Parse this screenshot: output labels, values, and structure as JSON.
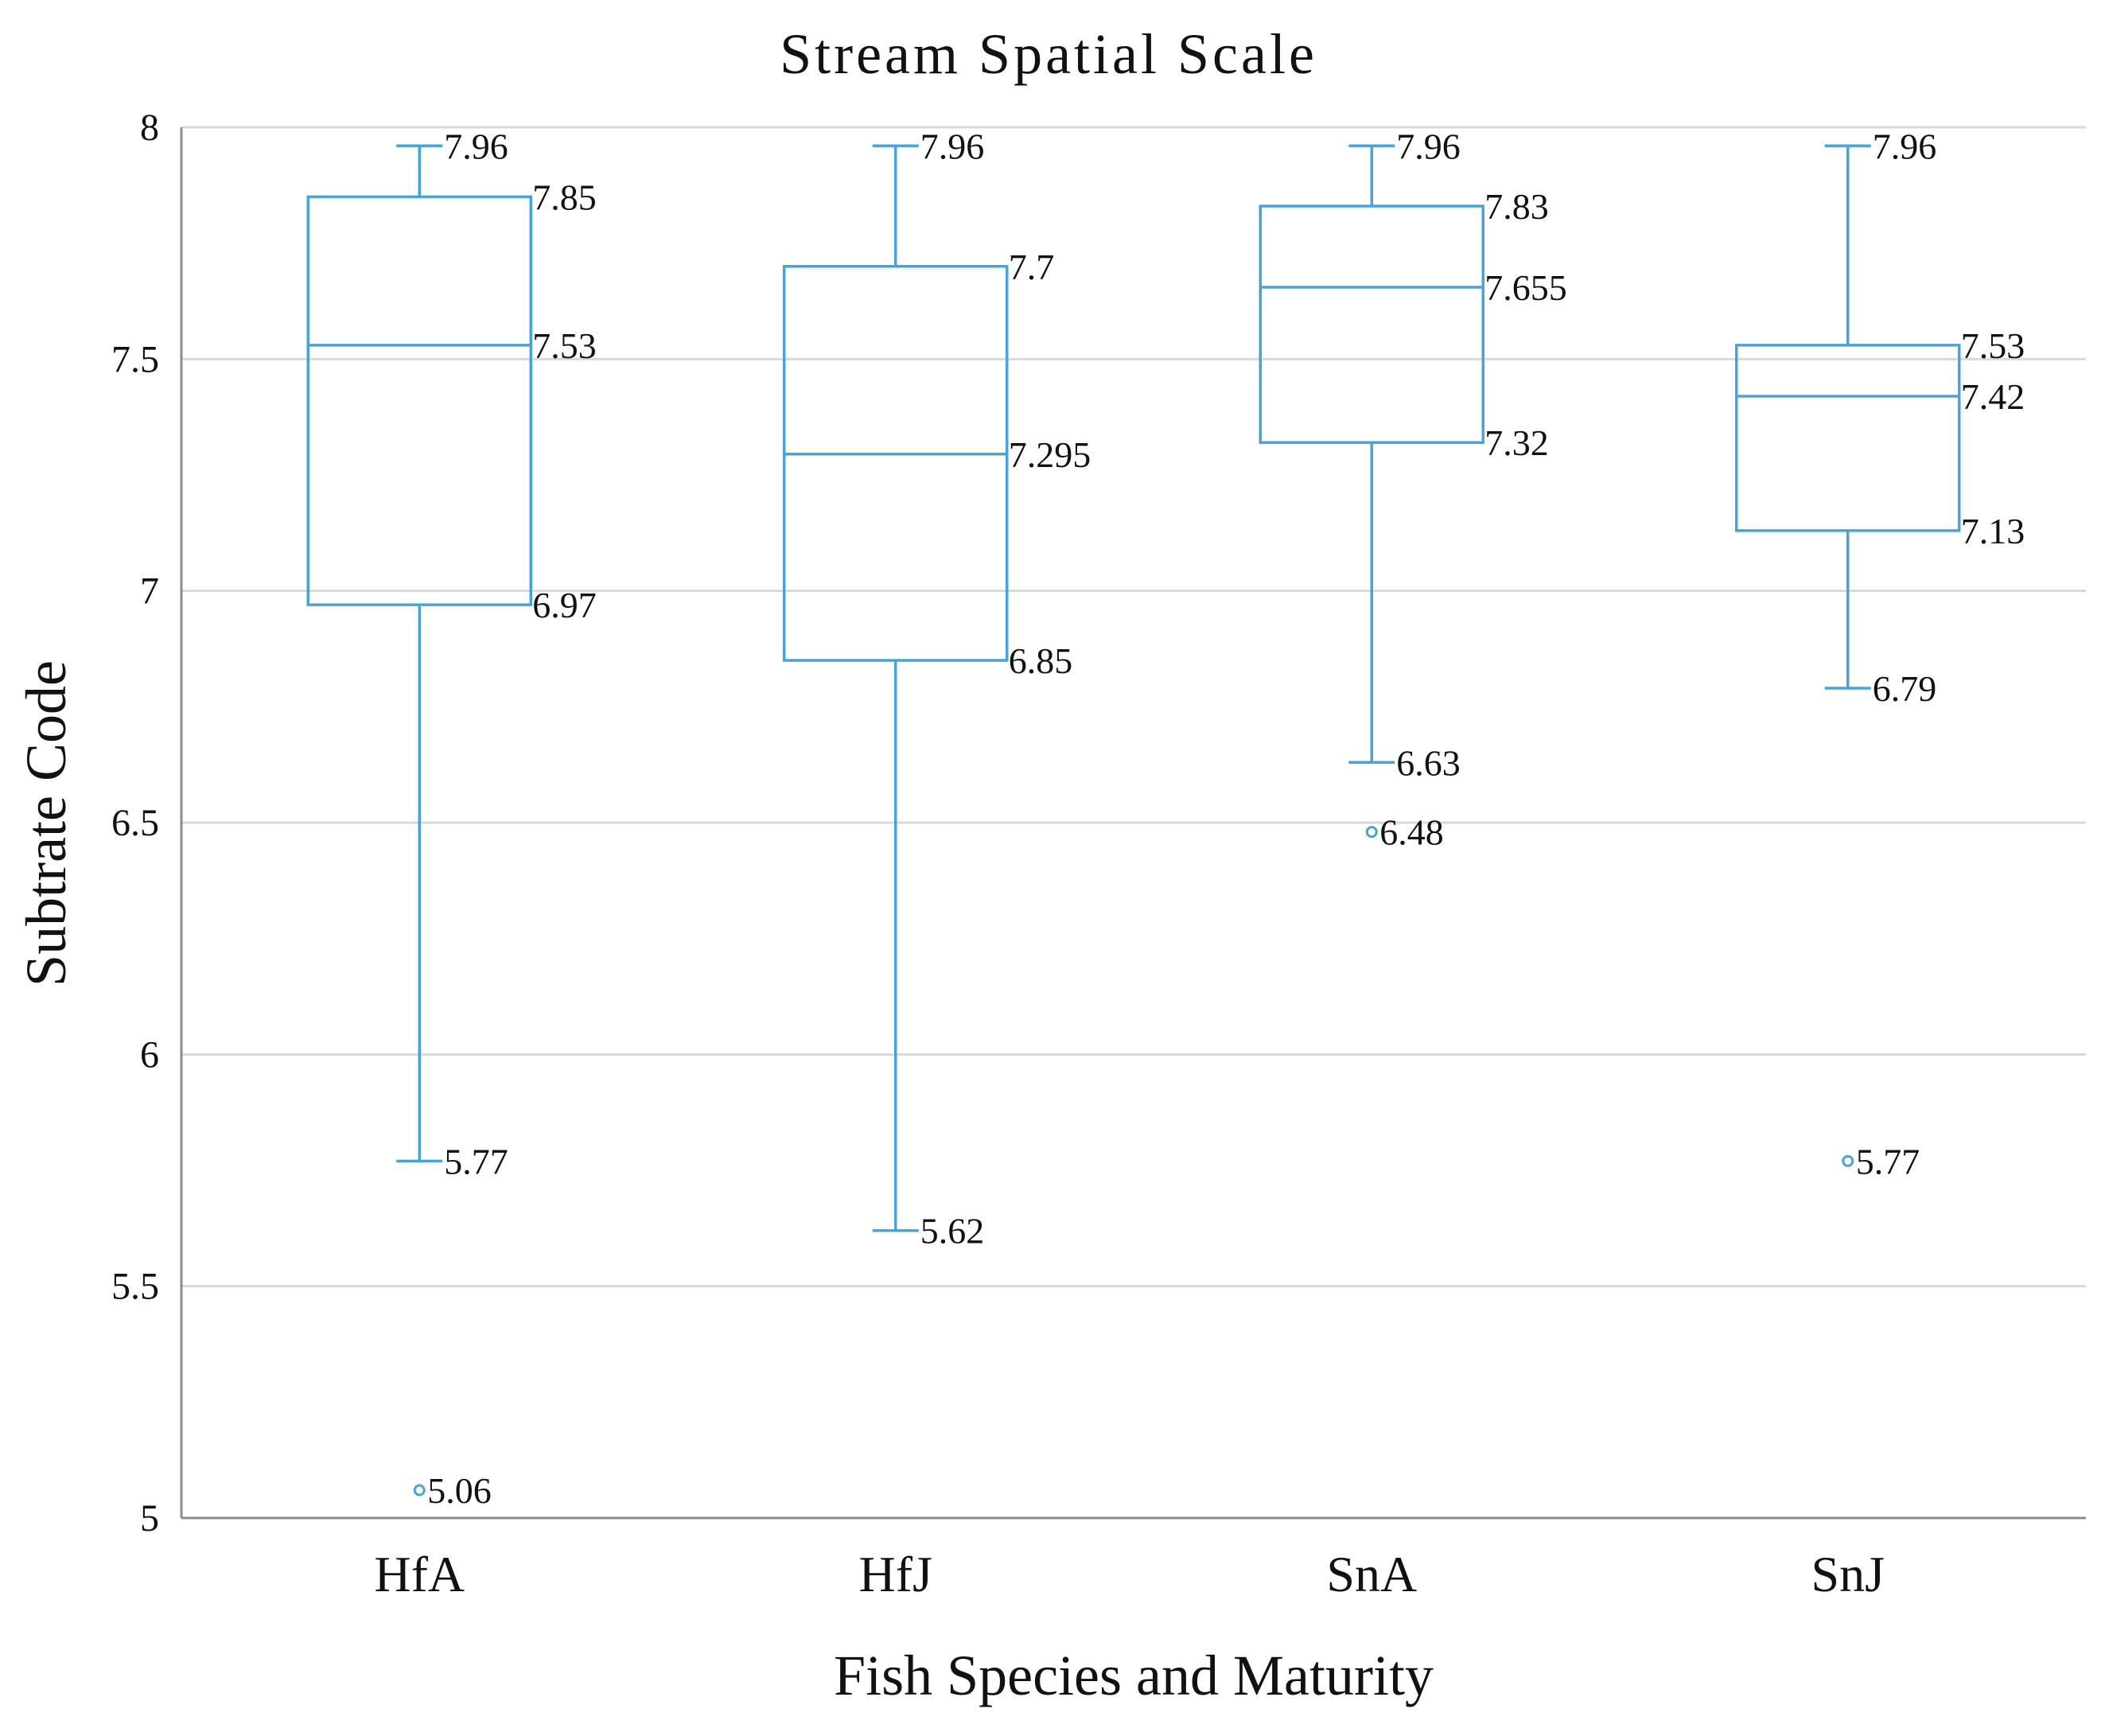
{
  "chart_data": {
    "type": "box",
    "title": "Stream Spatial Scale",
    "xlabel": "Fish Species  and  Maturity",
    "ylabel": "Subtrate Code",
    "ylim": [
      5,
      8
    ],
    "yticks": [
      5,
      5.5,
      6,
      6.5,
      7,
      7.5,
      8
    ],
    "ytick_labels": [
      "5",
      "5.5",
      "6",
      "6.5",
      "7",
      "7.5",
      "8"
    ],
    "grid": true,
    "categories": [
      "HfA",
      "HfJ",
      "SnA",
      "SnJ"
    ],
    "boxes": [
      {
        "name": "HfA",
        "whisker_high": 7.96,
        "q3": 7.85,
        "median": 7.53,
        "q1": 6.97,
        "whisker_low": 5.77,
        "outliers": [
          5.06
        ],
        "labels": {
          "whisker_high": "7.96",
          "q3": "7.85",
          "median": "7.53",
          "q1": "6.97",
          "whisker_low": "5.77",
          "outliers": [
            "5.06"
          ]
        }
      },
      {
        "name": "HfJ",
        "whisker_high": 7.96,
        "q3": 7.7,
        "median": 7.295,
        "q1": 6.85,
        "whisker_low": 5.62,
        "outliers": [],
        "labels": {
          "whisker_high": "7.96",
          "q3": "7.7",
          "median": "7.295",
          "q1": "6.85",
          "whisker_low": "5.62",
          "outliers": []
        }
      },
      {
        "name": "SnA",
        "whisker_high": 7.96,
        "q3": 7.83,
        "median": 7.655,
        "q1": 7.32,
        "whisker_low": 6.63,
        "outliers": [
          6.48
        ],
        "labels": {
          "whisker_high": "7.96",
          "q3": "7.83",
          "median": "7.655",
          "q1": "7.32",
          "whisker_low": "6.63",
          "outliers": [
            "6.48"
          ]
        }
      },
      {
        "name": "SnJ",
        "whisker_high": 7.96,
        "q3": 7.53,
        "median": 7.42,
        "q1": 7.13,
        "whisker_low": 6.79,
        "outliers": [
          5.77
        ],
        "labels": {
          "whisker_high": "7.96",
          "q3": "7.53",
          "median": "7.42",
          "q1": "7.13",
          "whisker_low": "6.79",
          "outliers": [
            "5.77"
          ]
        }
      }
    ],
    "colors": {
      "box": "#4aa3d8",
      "grid": "#d9d9d9",
      "axis": "#8c8c8c",
      "text": "#111111"
    }
  }
}
